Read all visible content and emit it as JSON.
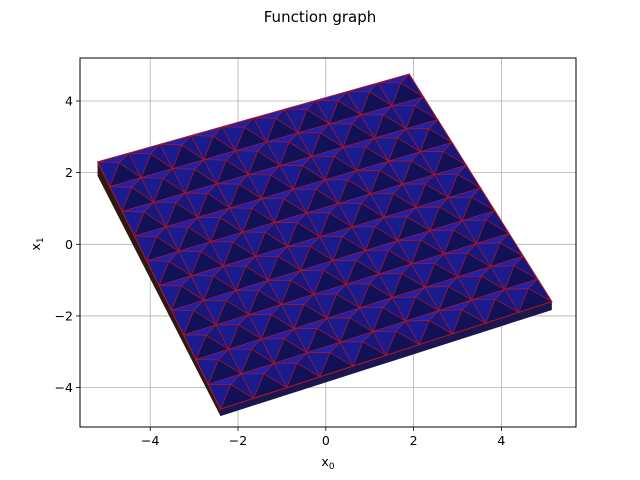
{
  "chart_data": {
    "type": "surface",
    "title": "Function graph",
    "xlabel_base": "x",
    "xlabel_sub": "0",
    "ylabel_base": "x",
    "ylabel_sub": "1",
    "xlim": [
      -5.6,
      5.7
    ],
    "ylim": [
      -5.1,
      5.2
    ],
    "xticks": [
      -4,
      -2,
      0,
      2,
      4
    ],
    "yticks": [
      -4,
      -2,
      0,
      2,
      4
    ],
    "xtick_labels": [
      "−4",
      "−2",
      "0",
      "2",
      "4"
    ],
    "ytick_labels": [
      "−4",
      "−2",
      "0",
      "2",
      "4"
    ],
    "grid": true,
    "surface_corners": {
      "left": [
        -5.2,
        2.3
      ],
      "top": [
        1.9,
        4.75
      ],
      "right": [
        5.15,
        -1.6
      ],
      "bottom": [
        -2.4,
        -4.6
      ]
    },
    "grid_cells": 10,
    "face_color": "#1e1ea0",
    "edge_color": "#b4141e",
    "side_color": "#2a1a10"
  }
}
